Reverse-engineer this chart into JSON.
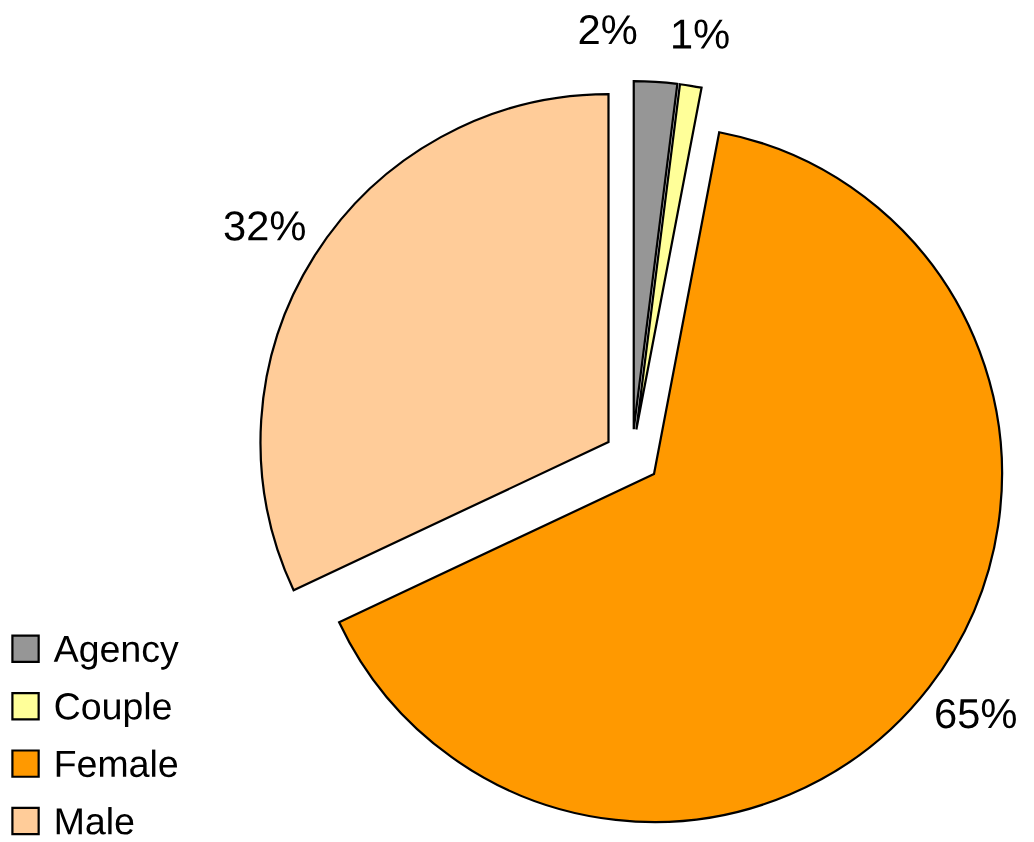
{
  "chart_data": {
    "type": "pie",
    "categories": [
      "Agency",
      "Couple",
      "Female",
      "Male"
    ],
    "values": [
      2,
      1,
      65,
      32
    ],
    "colors": [
      "#969696",
      "#ffff99",
      "#ff9900",
      "#ffcc99"
    ],
    "value_labels": [
      "2%",
      "1%",
      "65%",
      "32%"
    ],
    "legend": "bottom left"
  }
}
